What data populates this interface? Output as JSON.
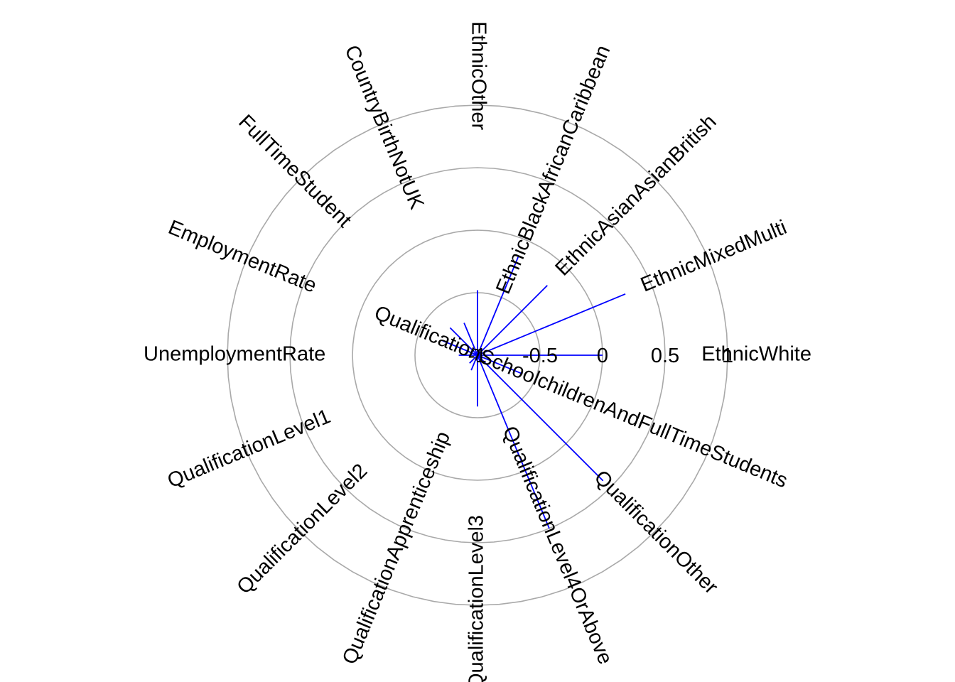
{
  "chart_data": {
    "type": "radial-line",
    "title": "",
    "scale": {
      "ticks": [
        -1,
        -0.5,
        0,
        0.5,
        1
      ],
      "tick_labels": [
        "-1",
        "-0.5",
        "0",
        "0.5",
        "1"
      ],
      "range": [
        -1,
        1
      ]
    },
    "grid": true,
    "series": [
      {
        "color": "#0000ff",
        "points": [
          {
            "category": "EthnicWhite",
            "value": 0.0
          },
          {
            "category": "EthnicMixedMulti",
            "value": 0.28
          },
          {
            "category": "EthnicAsianAsianBritish",
            "value": -0.21
          },
          {
            "category": "EthnicBlackAfricanCaribbean",
            "value": -0.15
          },
          {
            "category": "EthnicOther",
            "value": -0.48
          },
          {
            "category": "CountryBirthNotUK",
            "value": -0.72
          },
          {
            "category": "FullTimeStudent",
            "value": -0.69
          },
          {
            "category": "EmploymentRate",
            "value": -0.69
          },
          {
            "category": "UnemploymentRate",
            "value": -0.85
          },
          {
            "category": "QualificationLevel1",
            "value": -1.0
          },
          {
            "category": "QualificationLevel2",
            "value": -0.91
          },
          {
            "category": "QualificationApprenticeship",
            "value": -0.87
          },
          {
            "category": "QualificationLevel3",
            "value": -0.59
          },
          {
            "category": "QualificationLevel4OrAbove",
            "value": 0.5
          },
          {
            "category": "QualificationOther",
            "value": 0.42
          },
          {
            "category": "QualificationSchoolchildrenAndFullTimeStudents",
            "value": -0.61
          }
        ]
      }
    ]
  }
}
